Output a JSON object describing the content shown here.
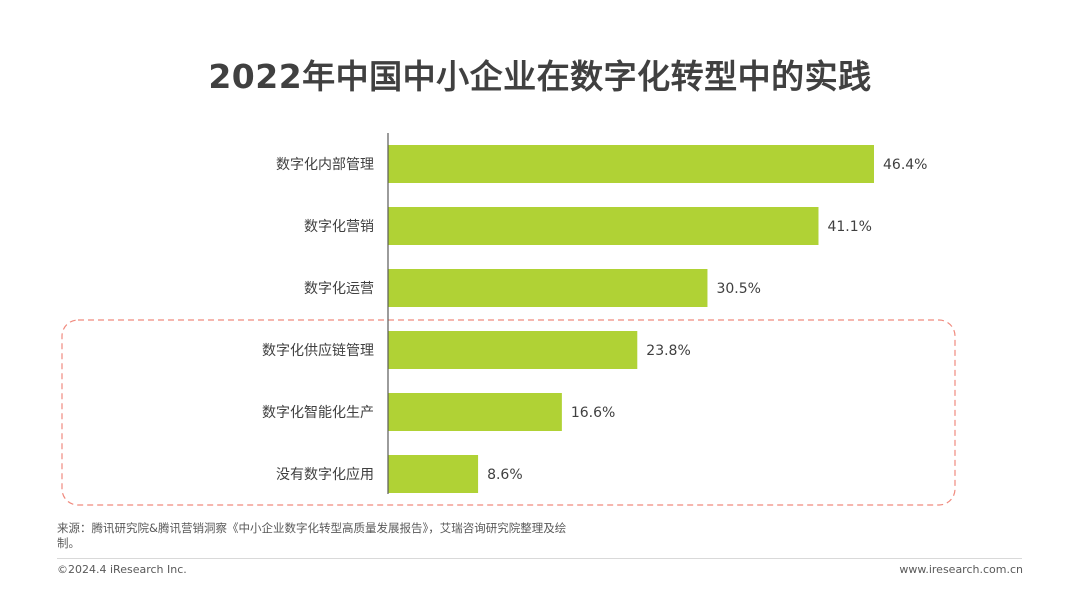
{
  "title": "2022年中国中小企业在数字化转型中的实践",
  "chart_data": {
    "type": "bar",
    "orientation": "horizontal",
    "categories": [
      "数字化内部管理",
      "数字化营销",
      "数字化运营",
      "数字化供应链管理",
      "数字化智能化生产",
      "没有数字化应用"
    ],
    "values": [
      46.4,
      41.1,
      30.5,
      23.8,
      16.6,
      8.6
    ],
    "value_labels": [
      "46.4%",
      "41.1%",
      "30.5%",
      "23.8%",
      "16.6%",
      "8.6%"
    ],
    "bar_color": "#b0d235",
    "highlight_color": "#f08a7e",
    "highlight_categories": [
      "数字化供应链管理",
      "数字化智能化生产",
      "没有数字化应用"
    ],
    "xlim": [
      0,
      50
    ],
    "grid": false,
    "legend": "none"
  },
  "footer": {
    "source": "来源：腾讯研究院&腾讯营销洞察《中小企业数字化转型高质量发展报告》，艾瑞咨询研究院整理及绘制。",
    "copyright": "©2024.4 iResearch Inc.",
    "website": "www.iresearch.com.cn"
  }
}
